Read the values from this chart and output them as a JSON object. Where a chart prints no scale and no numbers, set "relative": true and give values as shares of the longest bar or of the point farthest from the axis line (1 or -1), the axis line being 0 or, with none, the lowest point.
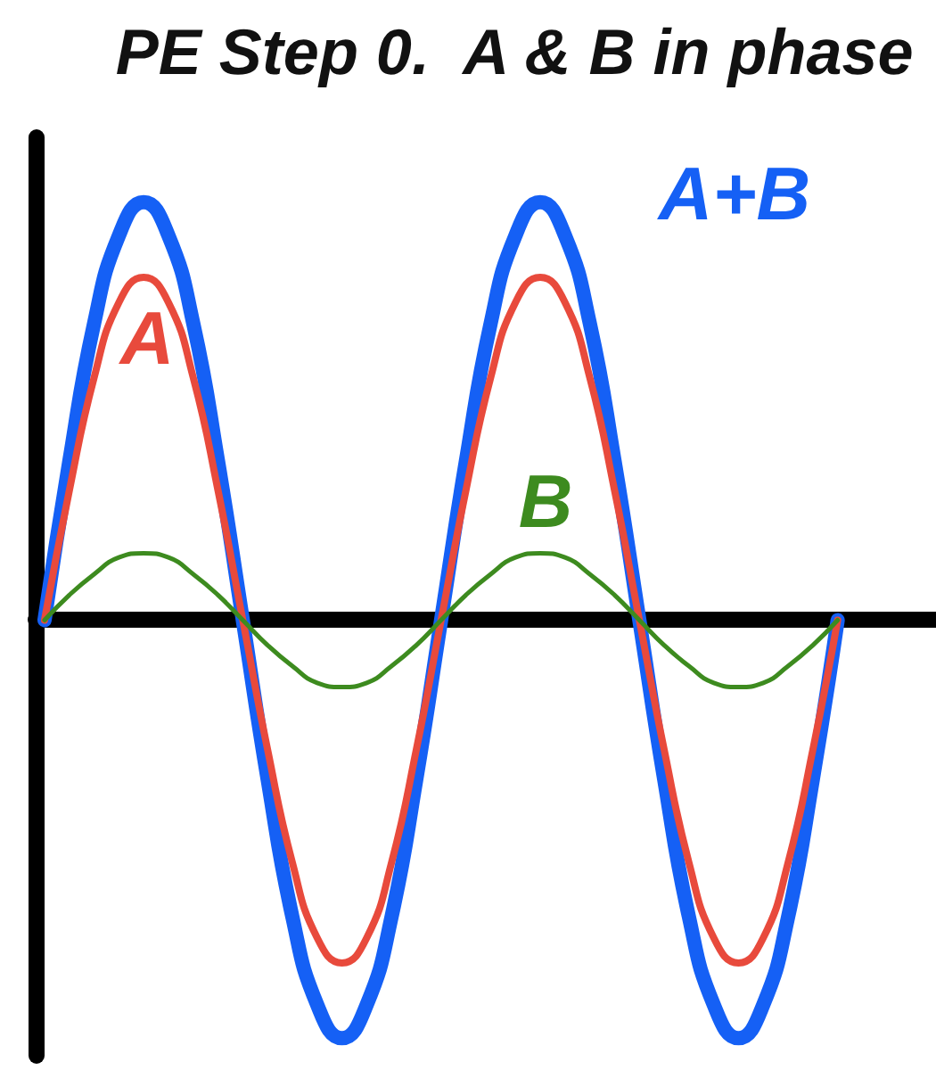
{
  "chart_data": {
    "type": "line",
    "title": "PE Step 0.  A & B in phase",
    "relative": true,
    "legend": false,
    "grid": false,
    "marker": "none",
    "line_style": "solid",
    "categories": [
      null,
      null,
      null,
      null,
      null,
      null,
      null,
      null,
      null,
      null,
      null,
      null,
      null,
      null,
      null,
      null,
      null,
      null,
      null,
      null,
      null,
      null,
      null,
      null,
      null,
      null,
      null,
      null,
      null,
      null,
      null,
      null,
      null
    ],
    "series": [
      {
        "name": "A+B",
        "color": "#1560f5",
        "values": [
          0,
          0.38,
          0.71,
          0.92,
          1,
          0.92,
          0.71,
          0.38,
          0,
          -0.38,
          -0.71,
          -0.92,
          -1,
          -0.92,
          -0.71,
          -0.38,
          0,
          0.38,
          0.71,
          0.92,
          1,
          0.92,
          0.71,
          0.38,
          0,
          -0.38,
          -0.71,
          -0.92,
          -1,
          -0.92,
          -0.71,
          -0.38,
          0
        ]
      },
      {
        "name": "A",
        "color": "#e84a3c",
        "values": [
          0,
          0.31,
          0.58,
          0.76,
          0.82,
          0.76,
          0.58,
          0.31,
          0,
          -0.31,
          -0.58,
          -0.76,
          -0.82,
          -0.76,
          -0.58,
          -0.31,
          0,
          0.31,
          0.58,
          0.76,
          0.82,
          0.76,
          0.58,
          0.31,
          0,
          -0.31,
          -0.58,
          -0.76,
          -0.82,
          -0.76,
          -0.58,
          -0.31,
          0
        ]
      },
      {
        "name": "B",
        "color": "#3d8b1f",
        "values": [
          0,
          0.06,
          0.11,
          0.15,
          0.16,
          0.15,
          0.11,
          0.06,
          0,
          -0.06,
          -0.11,
          -0.15,
          -0.16,
          -0.15,
          -0.11,
          -0.06,
          0,
          0.06,
          0.11,
          0.15,
          0.16,
          0.15,
          0.11,
          0.06,
          0,
          -0.06,
          -0.11,
          -0.15,
          -0.16,
          -0.15,
          -0.11,
          -0.06,
          0
        ]
      }
    ]
  }
}
